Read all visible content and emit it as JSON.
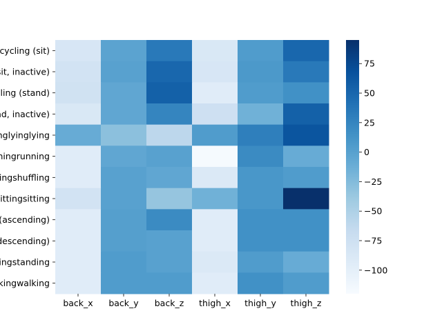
{
  "chart_data": {
    "type": "heatmap",
    "title": "",
    "xlabel": "",
    "ylabel": "",
    "columns": [
      "back_x",
      "back_y",
      "back_z",
      "thigh_x",
      "thigh_y",
      "thigh_z"
    ],
    "rows": [
      "cycling (sit)",
      "cycling (sit, inactive)",
      "cycling (stand)",
      "cycling (stand, inactive)",
      "lyinglyinglying",
      "runningrunningrunning",
      "shufflingshufflingshuffling",
      "sittingsittingsitting",
      "stairs (ascending)",
      "stairs (descending)",
      "standingstandingstanding",
      "walkingwalkingwalking"
    ],
    "values": [
      [
        -85,
        -2,
        35,
        -88,
        5,
        50
      ],
      [
        -80,
        0,
        50,
        -85,
        8,
        35
      ],
      [
        -78,
        -5,
        55,
        -95,
        5,
        15
      ],
      [
        -88,
        -5,
        25,
        -75,
        -15,
        55
      ],
      [
        -10,
        -30,
        -60,
        5,
        30,
        65
      ],
      [
        -95,
        -5,
        0,
        -118,
        20,
        -10
      ],
      [
        -95,
        0,
        -5,
        -90,
        10,
        5
      ],
      [
        -80,
        0,
        -35,
        -15,
        10,
        95
      ],
      [
        -95,
        2,
        20,
        -95,
        15,
        15
      ],
      [
        -95,
        2,
        0,
        -95,
        15,
        15
      ],
      [
        -95,
        5,
        0,
        -90,
        5,
        -10
      ],
      [
        -95,
        5,
        5,
        -95,
        15,
        5
      ]
    ],
    "colorbar": {
      "min": -120,
      "max": 95,
      "ticks": [
        75,
        50,
        25,
        0,
        -25,
        -50,
        -75,
        -100
      ],
      "colormap": "Blues"
    }
  }
}
